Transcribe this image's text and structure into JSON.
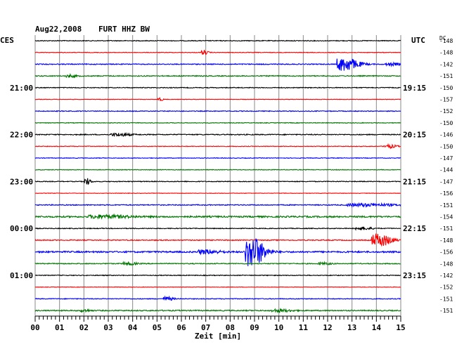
{
  "header": {
    "date": "Aug22,2008",
    "station": "FURT HHZ BW",
    "left_tz": "CES",
    "right_tz": "UTC",
    "dc_label": "DC"
  },
  "chart_data": {
    "type": "line",
    "title": "Aug22,2008  FURT HHZ BW",
    "xlabel": "Zeit [min]",
    "ylabel": "",
    "xlim": [
      0,
      15
    ],
    "x_ticks": [
      "00",
      "01",
      "02",
      "03",
      "04",
      "05",
      "06",
      "07",
      "08",
      "09",
      "10",
      "11",
      "12",
      "13",
      "14",
      "15"
    ],
    "grid": true,
    "trace_colors": [
      "#000000",
      "#ff0000",
      "#0000ff",
      "#007700"
    ],
    "left_time_labels": [
      {
        "trace": 4,
        "text": "21:00"
      },
      {
        "trace": 8,
        "text": "22:00"
      },
      {
        "trace": 12,
        "text": "23:00"
      },
      {
        "trace": 16,
        "text": "00:00"
      },
      {
        "trace": 20,
        "text": "01:00"
      }
    ],
    "right_time_labels": [
      {
        "trace": 4,
        "text": "19:15"
      },
      {
        "trace": 8,
        "text": "20:15"
      },
      {
        "trace": 12,
        "text": "21:15"
      },
      {
        "trace": 16,
        "text": "22:15"
      },
      {
        "trace": 20,
        "text": "23:15"
      }
    ],
    "traces": [
      {
        "dc": "-148",
        "amp": 0.25,
        "events": []
      },
      {
        "dc": "-148",
        "amp": 0.2,
        "events": [
          {
            "t": 6.9,
            "a": 1.6,
            "w": 0.4
          }
        ]
      },
      {
        "dc": "-142",
        "amp": 0.3,
        "events": [
          {
            "t": 12.7,
            "a": 4.5,
            "w": 1.3
          },
          {
            "t": 14.6,
            "a": 0.8,
            "w": 1.0
          }
        ]
      },
      {
        "dc": "-151",
        "amp": 0.3,
        "events": [
          {
            "t": 1.4,
            "a": 0.9,
            "w": 0.6
          }
        ]
      },
      {
        "dc": "-150",
        "amp": 0.25,
        "events": []
      },
      {
        "dc": "-157",
        "amp": 0.15,
        "events": [
          {
            "t": 5.1,
            "a": 1.2,
            "w": 0.3
          }
        ]
      },
      {
        "dc": "-152",
        "amp": 0.25,
        "events": []
      },
      {
        "dc": "-150",
        "amp": 0.2,
        "events": []
      },
      {
        "dc": "-146",
        "amp": 0.3,
        "events": [
          {
            "t": 3.4,
            "a": 0.9,
            "w": 1.2
          }
        ]
      },
      {
        "dc": "-150",
        "amp": 0.2,
        "events": [
          {
            "t": 14.5,
            "a": 1.1,
            "w": 0.8
          }
        ]
      },
      {
        "dc": "-147",
        "amp": 0.2,
        "events": []
      },
      {
        "dc": "-144",
        "amp": 0.2,
        "events": []
      },
      {
        "dc": "-147",
        "amp": 0.25,
        "events": [
          {
            "t": 2.1,
            "a": 2.2,
            "w": 0.4
          }
        ]
      },
      {
        "dc": "-156",
        "amp": 0.15,
        "events": []
      },
      {
        "dc": "-151",
        "amp": 0.3,
        "events": [
          {
            "t": 13.5,
            "a": 0.9,
            "w": 3.0
          }
        ]
      },
      {
        "dc": "-154",
        "amp": 0.5,
        "events": [
          {
            "t": 2.8,
            "a": 1.0,
            "w": 2.5
          }
        ]
      },
      {
        "dc": "-151",
        "amp": 0.25,
        "events": [
          {
            "t": 13.4,
            "a": 0.9,
            "w": 1.0
          }
        ]
      },
      {
        "dc": "-148",
        "amp": 0.3,
        "events": [
          {
            "t": 14.1,
            "a": 4.2,
            "w": 1.2
          }
        ]
      },
      {
        "dc": "-156",
        "amp": 0.5,
        "events": [
          {
            "t": 8.9,
            "a": 10.0,
            "w": 1.2
          },
          {
            "t": 7.0,
            "a": 1.2,
            "w": 1.4
          }
        ]
      },
      {
        "dc": "-148",
        "amp": 0.3,
        "events": [
          {
            "t": 3.8,
            "a": 1.0,
            "w": 0.8
          },
          {
            "t": 11.8,
            "a": 0.7,
            "w": 0.8
          }
        ]
      },
      {
        "dc": "-142",
        "amp": 0.25,
        "events": []
      },
      {
        "dc": "-152",
        "amp": 0.15,
        "events": []
      },
      {
        "dc": "-151",
        "amp": 0.25,
        "events": [
          {
            "t": 5.4,
            "a": 1.3,
            "w": 0.6
          }
        ]
      },
      {
        "dc": "-151",
        "amp": 0.35,
        "events": [
          {
            "t": 10.0,
            "a": 0.9,
            "w": 1.2
          },
          {
            "t": 2.0,
            "a": 0.7,
            "w": 0.6
          }
        ]
      }
    ]
  }
}
